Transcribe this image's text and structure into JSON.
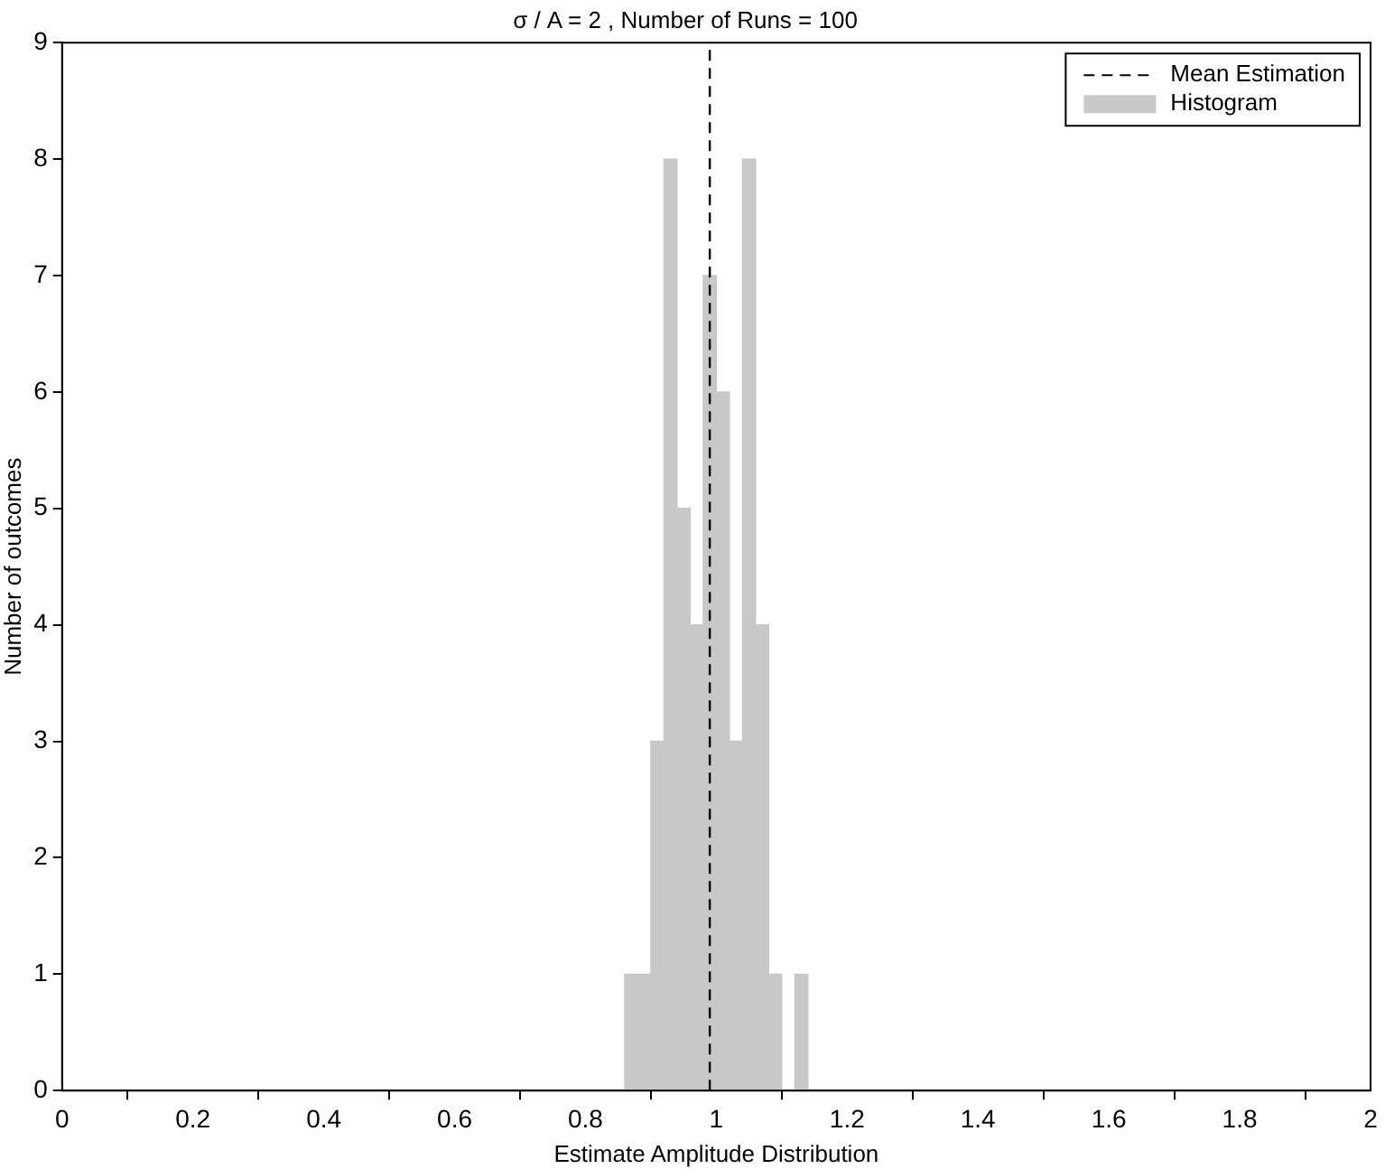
{
  "chart_data": {
    "type": "histogram",
    "title": "σ / A = 2 , Number of Runs = 100",
    "xlabel": "Estimate Amplitude Distribution",
    "ylabel": "Number of outcomes",
    "bins": [
      0.86,
      0.88,
      0.9,
      0.92,
      0.94,
      0.96,
      0.98,
      1.0,
      1.02,
      1.04,
      1.06,
      1.08,
      1.1,
      1.12,
      1.14
    ],
    "series": [
      {
        "name": "Histogram",
        "color": "#c8c8c8",
        "values": [
          1,
          1,
          3,
          8,
          5,
          4,
          7,
          6,
          3,
          8,
          4,
          1,
          0,
          1
        ]
      }
    ],
    "ref_lines": [
      {
        "axis": "x",
        "value": 0.99,
        "label": "Mean Estimation",
        "color": "#000000",
        "line_style": "dashed"
      }
    ],
    "xlim": [
      0,
      2
    ],
    "xticks": [
      0,
      0.2,
      0.4,
      0.6,
      0.8,
      1,
      1.2,
      1.4,
      1.6,
      1.8,
      2
    ],
    "ylim": [
      0,
      9
    ],
    "yticks": [
      0,
      1,
      2,
      3,
      4,
      5,
      6,
      7,
      8,
      9
    ],
    "legend": "top right",
    "grid": false
  }
}
